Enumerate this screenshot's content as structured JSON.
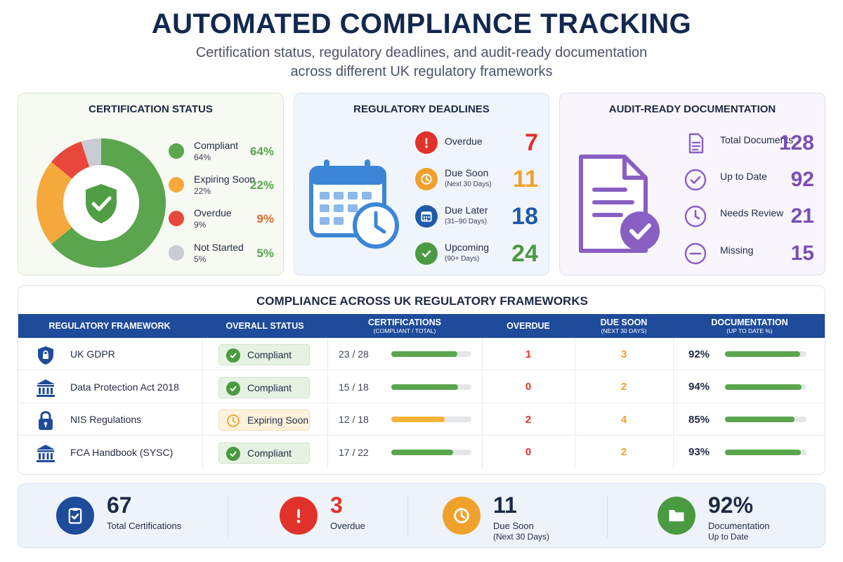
{
  "header": {
    "title": "AUTOMATED COMPLIANCE TRACKING",
    "subtitle_line1": "Certification status, regulatory deadlines, and audit-ready documentation",
    "subtitle_line2": "across different UK regulatory frameworks"
  },
  "certification": {
    "title": "CERTIFICATION STATUS",
    "items": [
      {
        "label": "Compliant",
        "sub": "64%",
        "pct": "64%",
        "value": 64,
        "color": "#5aa54e"
      },
      {
        "label": "Expiring Soon",
        "sub": "22%",
        "pct": "22%",
        "value": 22,
        "color": "#f5a93b"
      },
      {
        "label": "Overdue",
        "sub": "9%",
        "pct": "9%",
        "value": 9,
        "color": "#e8483b"
      },
      {
        "label": "Not Started",
        "sub": "5%",
        "pct": "5%",
        "value": 5,
        "color": "#c9ccd2"
      }
    ],
    "center_icon": "shield-check-icon"
  },
  "deadlines": {
    "title": "REGULATORY DEADLINES",
    "items": [
      {
        "label": "Overdue",
        "sub": "",
        "value": "7",
        "color": "#e0322a",
        "icon": "exclamation-icon"
      },
      {
        "label": "Due Soon",
        "sub": "(Next 30 Days)",
        "value": "11",
        "color": "#f0a12b",
        "icon": "clock-icon"
      },
      {
        "label": "Due Later",
        "sub": "(31–90 Days)",
        "value": "18",
        "color": "#1e5aa8",
        "icon": "calendar-icon"
      },
      {
        "label": "Upcoming",
        "sub": "(90+ Days)",
        "value": "24",
        "color": "#4a9a41",
        "icon": "check-circle-icon"
      }
    ]
  },
  "audit": {
    "title": "AUDIT-READY DOCUMENTATION",
    "items": [
      {
        "label": "Total Documents",
        "value": "128",
        "icon": "document-icon"
      },
      {
        "label": "Up to Date",
        "value": "92",
        "icon": "check-circle-icon"
      },
      {
        "label": "Needs Review",
        "value": "21",
        "icon": "clock-icon"
      },
      {
        "label": "Missing",
        "value": "15",
        "icon": "minus-circle-icon"
      }
    ]
  },
  "frameworks": {
    "title": "COMPLIANCE ACROSS UK REGULATORY FRAMEWORKS",
    "columns": {
      "framework": "REGULATORY FRAMEWORK",
      "status": "OVERALL STATUS",
      "certifications": "CERTIFICATIONS",
      "certifications_sub": "(COMPLIANT / TOTAL)",
      "overdue": "OVERDUE",
      "due_soon": "DUE SOON",
      "due_soon_sub": "(NEXT 30 DAYS)",
      "documentation": "DOCUMENTATION",
      "documentation_sub": "(UP TO DATE %)"
    },
    "rows": [
      {
        "name": "UK GDPR",
        "icon": "shield-lock-icon",
        "status": "Compliant",
        "status_type": "ok",
        "certs": "23 / 28",
        "cert_ratio": 0.821,
        "overdue": "1",
        "due_soon": "3",
        "doc_pct": "92%",
        "doc_ratio": 0.92
      },
      {
        "name": "Data Protection Act 2018",
        "icon": "bank-icon",
        "status": "Compliant",
        "status_type": "ok",
        "certs": "15 / 18",
        "cert_ratio": 0.833,
        "overdue": "0",
        "due_soon": "2",
        "doc_pct": "94%",
        "doc_ratio": 0.94
      },
      {
        "name": "NIS Regulations",
        "icon": "lock-icon",
        "status": "Expiring Soon",
        "status_type": "warn",
        "certs": "12 / 18",
        "cert_ratio": 0.667,
        "overdue": "2",
        "due_soon": "4",
        "doc_pct": "85%",
        "doc_ratio": 0.85
      },
      {
        "name": "FCA Handbook (SYSC)",
        "icon": "bank-icon",
        "status": "Compliant",
        "status_type": "ok",
        "certs": "17 / 22",
        "cert_ratio": 0.773,
        "overdue": "0",
        "due_soon": "2",
        "doc_pct": "93%",
        "doc_ratio": 0.93
      }
    ]
  },
  "summary": {
    "items": [
      {
        "value": "67",
        "label": "Total Certifications",
        "label2": "",
        "color": "#1e4b9a",
        "num_color": "#1c2a44",
        "icon": "clipboard-check-icon"
      },
      {
        "value": "3",
        "label": "Overdue",
        "label2": "",
        "color": "#e0322a",
        "num_color": "#e0322a",
        "icon": "exclamation-icon"
      },
      {
        "value": "11",
        "label": "Due Soon",
        "label2": "(Next 30 Days)",
        "color": "#f0a12b",
        "num_color": "#1c2a44",
        "icon": "clock-icon"
      },
      {
        "value": "92%",
        "label": "Documentation",
        "label2": "Up to Date",
        "color": "#4a9a41",
        "num_color": "#1c2a44",
        "icon": "folder-check-icon"
      }
    ]
  },
  "colors": {
    "brand_navy": "#1e4b9a",
    "compliant_green": "#5aa54e",
    "warning_orange": "#f5a93b",
    "danger_red": "#e8483b",
    "audit_purple": "#7a4fb3"
  }
}
